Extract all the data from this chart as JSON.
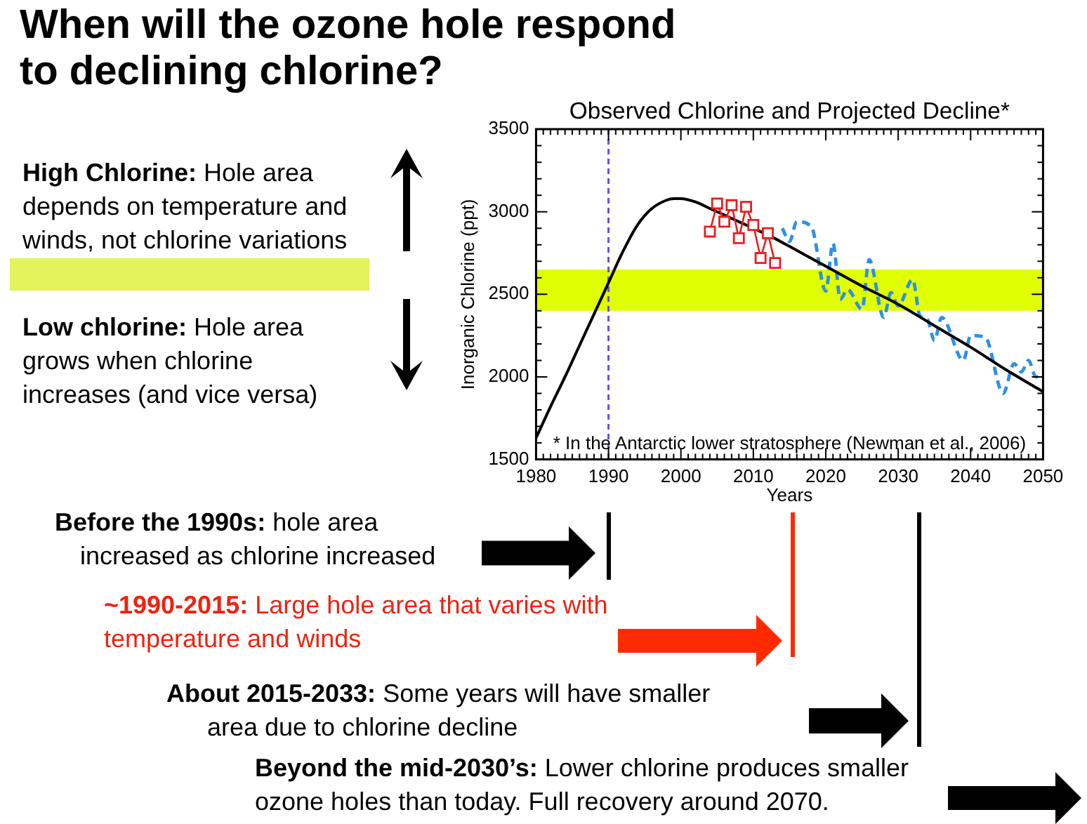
{
  "chart_data": {
    "type": "line",
    "title": "When will the ozone hole respond to declining chlorine?",
    "subtitle": "Observed Chlorine and Projected Decline*",
    "xlabel": "Years",
    "ylabel": "Inorganic Chlorine (ppt)",
    "annotations": [
      "* In the Antarctic lower stratosphere (Newman et al., 2006)",
      "High Chlorine: Hole area depends on temperature and winds, not chlorine variations",
      "Low chlorine: Hole area grows when chlorine increases (and vice versa)",
      "Before the 1990s: hole area increased as chlorine increased",
      "~1990-2015: Large hole area that varies with temperature and winds",
      "About 2015-2033: Some years will have smaller area due to chlorine decline",
      "Beyond the mid-2030’s: Lower chlorine produces smaller ozone holes than today. Full recovery around 2070."
    ],
    "xlim": [
      1980,
      2050
    ],
    "xticks": [
      1980,
      {
        "value": 1981,
        "label": null
      },
      {
        "value": 1982,
        "label": null
      },
      {
        "value": 1983,
        "label": null
      },
      {
        "value": 1984,
        "label": null
      },
      {
        "value": 1985,
        "label": null
      },
      {
        "value": 1986,
        "label": null
      },
      {
        "value": 1987,
        "label": null
      },
      {
        "value": 1988,
        "label": null
      },
      {
        "value": 1989,
        "label": null
      },
      1990,
      {
        "value": 1991,
        "label": null
      },
      {
        "value": 1992,
        "label": null
      },
      {
        "value": 1993,
        "label": null
      },
      {
        "value": 1994,
        "label": null
      },
      {
        "value": 1995,
        "label": null
      },
      {
        "value": 1996,
        "label": null
      },
      {
        "value": 1997,
        "label": null
      },
      {
        "value": 1998,
        "label": null
      },
      {
        "value": 1999,
        "label": null
      },
      2000,
      {
        "value": 2001,
        "label": null
      },
      {
        "value": 2002,
        "label": null
      },
      {
        "value": 2003,
        "label": null
      },
      {
        "value": 2004,
        "label": null
      },
      {
        "value": 2005,
        "label": null
      },
      {
        "value": 2006,
        "label": null
      },
      {
        "value": 2007,
        "label": null
      },
      {
        "value": 2008,
        "label": null
      },
      {
        "value": 2009,
        "label": null
      },
      2010,
      {
        "value": 2011,
        "label": null
      },
      {
        "value": 2012,
        "label": null
      },
      {
        "value": 2013,
        "label": null
      },
      {
        "value": 2014,
        "label": null
      },
      {
        "value": 2015,
        "label": null
      },
      {
        "value": 2016,
        "label": null
      },
      {
        "value": 2017,
        "label": null
      },
      {
        "value": 2018,
        "label": null
      },
      {
        "value": 2019,
        "label": null
      },
      2020,
      {
        "value": 2021,
        "label": null
      },
      {
        "value": 2022,
        "label": null
      },
      {
        "value": 2023,
        "label": null
      },
      {
        "value": 2024,
        "label": null
      },
      {
        "value": 2025,
        "label": null
      },
      {
        "value": 2026,
        "label": null
      },
      {
        "value": 2027,
        "label": null
      },
      {
        "value": 2028,
        "label": null
      },
      {
        "value": 2029,
        "label": null
      },
      2030,
      {
        "value": 2031,
        "label": null
      },
      {
        "value": 2032,
        "label": null
      },
      {
        "value": 2033,
        "label": null
      },
      {
        "value": 2034,
        "label": null
      },
      {
        "value": 2035,
        "label": null
      },
      {
        "value": 2036,
        "label": null
      },
      {
        "value": 2037,
        "label": null
      },
      {
        "value": 2038,
        "label": null
      },
      {
        "value": 2039,
        "label": null
      },
      2040,
      {
        "value": 2041,
        "label": null
      },
      {
        "value": 2042,
        "label": null
      },
      {
        "value": 2043,
        "label": null
      },
      {
        "value": 2044,
        "label": null
      },
      {
        "value": 2045,
        "label": null
      },
      {
        "value": 2046,
        "label": null
      },
      {
        "value": 2047,
        "label": null
      },
      {
        "value": 2048,
        "label": null
      },
      {
        "value": 2049,
        "label": null
      },
      2050
    ],
    "ylim": [
      1500,
      3500
    ],
    "yticks": [
      1500,
      {
        "value": 1600,
        "label": null
      },
      {
        "value": 1700,
        "label": null
      },
      {
        "value": 1800,
        "label": null
      },
      {
        "value": 1900,
        "label": null
      },
      2000,
      {
        "value": 2100,
        "label": null
      },
      {
        "value": 2200,
        "label": null
      },
      {
        "value": 2300,
        "label": null
      },
      {
        "value": 2400,
        "label": null
      },
      2500,
      {
        "value": 2600,
        "label": null
      },
      {
        "value": 2700,
        "label": null
      },
      {
        "value": 2800,
        "label": null
      },
      {
        "value": 2900,
        "label": null
      },
      3000,
      {
        "value": 3100,
        "label": null
      },
      {
        "value": 3200,
        "label": null
      },
      {
        "value": 3300,
        "label": null
      },
      {
        "value": 3400,
        "label": null
      },
      3500
    ],
    "grid": false,
    "legend": false,
    "ref_lines": [
      {
        "axis": "x",
        "value": 1990,
        "color": "#6a50dc",
        "line_style": "dashed"
      }
    ],
    "bands": [
      {
        "axis": "y",
        "from": 2400,
        "to": 2650,
        "color": "#e0ff00"
      }
    ],
    "series": [
      {
        "color": "#000000",
        "marker": "none",
        "line_style": "solid",
        "x": [
          1980,
          1982,
          1984,
          1986,
          1988,
          1990,
          1992,
          1994,
          1996,
          1998,
          1999,
          2000,
          2002,
          2004,
          2006,
          2008,
          2010,
          2012,
          2015,
          2020,
          2025,
          2030,
          2035,
          2040,
          2045,
          2050
        ],
        "values": [
          1630,
          1820,
          2000,
          2190,
          2380,
          2570,
          2760,
          2920,
          3020,
          3070,
          3080,
          3080,
          3060,
          3020,
          2980,
          2940,
          2900,
          2860,
          2790,
          2670,
          2550,
          2440,
          2310,
          2180,
          2040,
          1910
        ]
      },
      {
        "color": "#ee1c1c",
        "marker": "square",
        "line_style": "solid",
        "x": [
          2004,
          2005,
          2006,
          2007,
          2008,
          2009,
          2010,
          2011,
          2012,
          2013
        ],
        "values": [
          2880,
          3050,
          2940,
          3040,
          2840,
          3030,
          2920,
          2720,
          2870,
          2690
        ]
      },
      {
        "color": "#2f8fe6",
        "marker": "none",
        "line_style": "dashed",
        "x": [
          2014,
          2015,
          2016,
          2018,
          2020,
          2021,
          2022,
          2023,
          2025,
          2026,
          2028,
          2029,
          2030,
          2032,
          2033,
          2034,
          2035,
          2036,
          2039,
          2040,
          2042,
          2044.5,
          2046,
          2047,
          2048,
          2049,
          2050
        ],
        "values": [
          2900,
          2820,
          2940,
          2910,
          2520,
          2810,
          2470,
          2530,
          2410,
          2710,
          2360,
          2510,
          2430,
          2590,
          2370,
          2350,
          2220,
          2360,
          2100,
          2250,
          2240,
          1900,
          2080,
          2030,
          2100,
          2000,
          2000
        ]
      }
    ]
  }
}
